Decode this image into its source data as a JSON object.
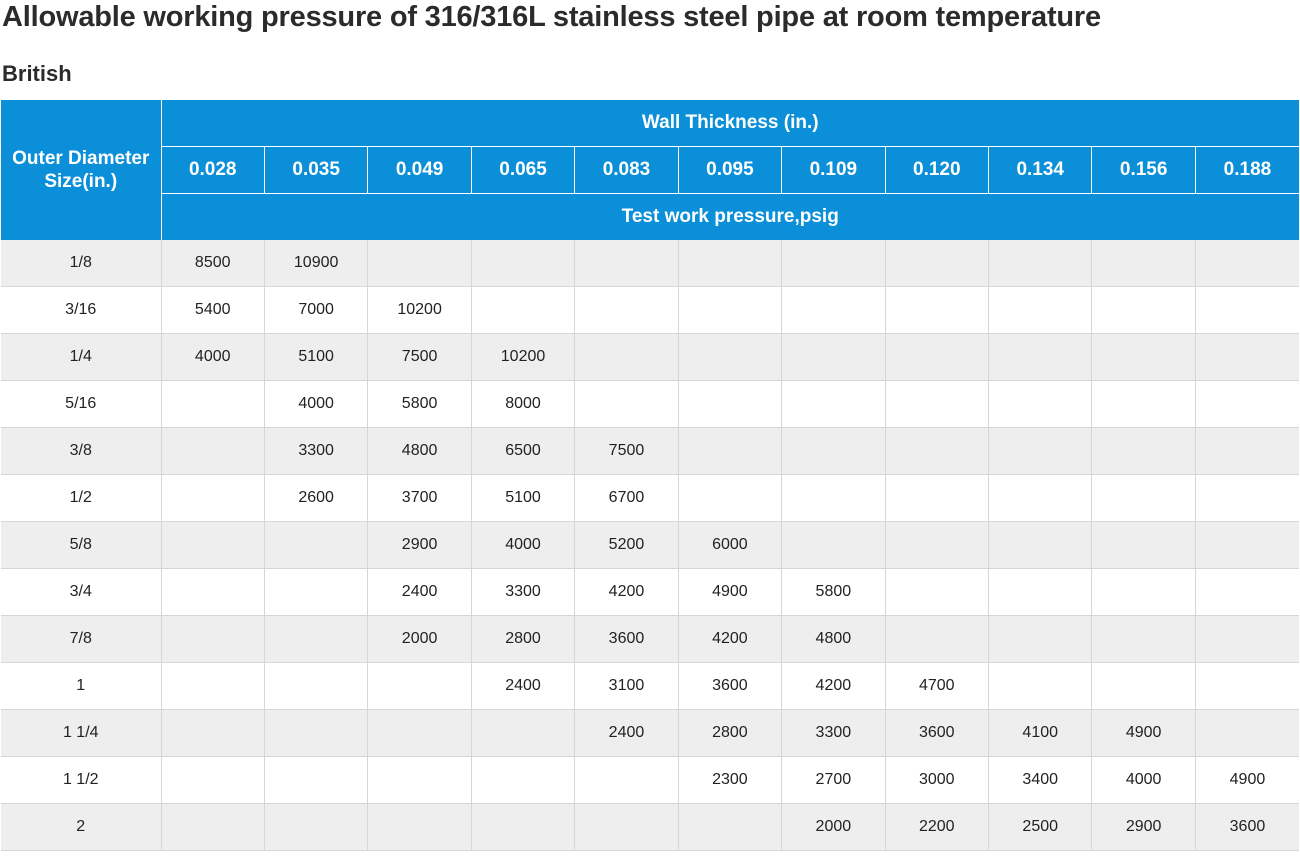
{
  "title": "Allowable working pressure of 316/316L stainless steel pipe at room temperature",
  "subtitle": "British",
  "table": {
    "od_header": "Outer Diameter Size(in.)",
    "wall_header": "Wall Thickness (in.)",
    "pressure_header": "Test work pressure,psig",
    "columns": [
      "0.028",
      "0.035",
      "0.049",
      "0.065",
      "0.083",
      "0.095",
      "0.109",
      "0.120",
      "0.134",
      "0.156",
      "0.188"
    ],
    "rows": [
      {
        "size": "1/8",
        "values": [
          "8500",
          "10900",
          "",
          "",
          "",
          "",
          "",
          "",
          "",
          "",
          ""
        ]
      },
      {
        "size": "3/16",
        "values": [
          "5400",
          "7000",
          "10200",
          "",
          "",
          "",
          "",
          "",
          "",
          "",
          ""
        ]
      },
      {
        "size": "1/4",
        "values": [
          "4000",
          "5100",
          "7500",
          "10200",
          "",
          "",
          "",
          "",
          "",
          "",
          ""
        ]
      },
      {
        "size": "5/16",
        "values": [
          "",
          "4000",
          "5800",
          "8000",
          "",
          "",
          "",
          "",
          "",
          "",
          ""
        ]
      },
      {
        "size": "3/8",
        "values": [
          "",
          "3300",
          "4800",
          "6500",
          "7500",
          "",
          "",
          "",
          "",
          "",
          ""
        ]
      },
      {
        "size": "1/2",
        "values": [
          "",
          "2600",
          "3700",
          "5100",
          "6700",
          "",
          "",
          "",
          "",
          "",
          ""
        ]
      },
      {
        "size": "5/8",
        "values": [
          "",
          "",
          "2900",
          "4000",
          "5200",
          "6000",
          "",
          "",
          "",
          "",
          ""
        ]
      },
      {
        "size": "3/4",
        "values": [
          "",
          "",
          "2400",
          "3300",
          "4200",
          "4900",
          "5800",
          "",
          "",
          "",
          ""
        ]
      },
      {
        "size": "7/8",
        "values": [
          "",
          "",
          "2000",
          "2800",
          "3600",
          "4200",
          "4800",
          "",
          "",
          "",
          ""
        ]
      },
      {
        "size": "1",
        "values": [
          "",
          "",
          "",
          "2400",
          "3100",
          "3600",
          "4200",
          "4700",
          "",
          "",
          ""
        ]
      },
      {
        "size": "1 1/4",
        "values": [
          "",
          "",
          "",
          "",
          "2400",
          "2800",
          "3300",
          "3600",
          "4100",
          "4900",
          ""
        ]
      },
      {
        "size": "1 1/2",
        "values": [
          "",
          "",
          "",
          "",
          "",
          "2300",
          "2700",
          "3000",
          "3400",
          "4000",
          "4900"
        ]
      },
      {
        "size": "2",
        "values": [
          "",
          "",
          "",
          "",
          "",
          "",
          "2000",
          "2200",
          "2500",
          "2900",
          "3600"
        ]
      }
    ]
  },
  "colors": {
    "header_bg": "#0b8fd9",
    "header_text": "#ffffff",
    "row_alt_bg": "#eeeeee",
    "row_bg": "#ffffff",
    "grid_line": "#d6d6d6"
  }
}
